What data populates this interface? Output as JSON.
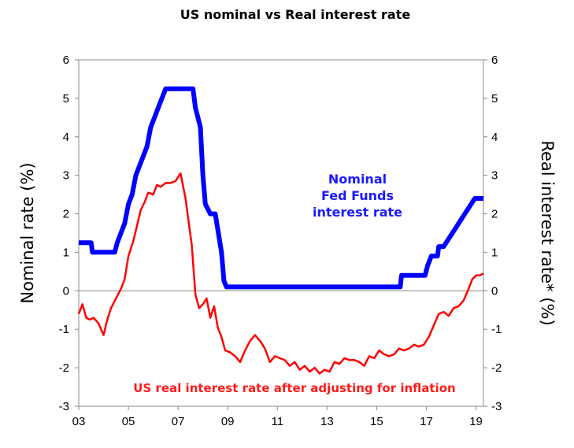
{
  "chart_data": {
    "type": "line",
    "title": "US nominal vs Real interest rate",
    "ylabel_left": "Nominal rate (%)",
    "ylabel_right": "Real interest rate* (%)",
    "xlabel": "",
    "xlim": [
      2003,
      2019.3
    ],
    "ylim": [
      -3,
      6
    ],
    "x_ticks": [
      2003,
      2005,
      2007,
      2009,
      2011,
      2013,
      2015,
      2017,
      2019
    ],
    "x_tick_labels": [
      "03",
      "05",
      "07",
      "09",
      "11",
      "13",
      "15",
      "17",
      "19"
    ],
    "y_ticks": [
      6,
      5,
      4,
      3,
      2,
      1,
      0,
      -1,
      -2,
      -3
    ],
    "y_tick_labels": [
      "6",
      "5",
      "4",
      "3",
      "2",
      "1",
      "0",
      "-1",
      "-2",
      "-3"
    ],
    "grid": false,
    "annotations": [
      {
        "text_lines": [
          "Nominal",
          "Fed Funds",
          "interest rate"
        ],
        "series": "Nominal Fed Funds interest rate"
      },
      {
        "text": "US real interest rate after adjusting for inflation",
        "series": "US real interest rate"
      }
    ],
    "series": [
      {
        "name": "Nominal Fed Funds interest rate",
        "color": "#0000ff",
        "x": [
          2003.0,
          2003.5,
          2003.55,
          2004.45,
          2004.55,
          2004.7,
          2004.85,
          2005.0,
          2005.15,
          2005.3,
          2005.45,
          2005.6,
          2005.75,
          2005.9,
          2006.05,
          2006.2,
          2006.35,
          2006.5,
          2007.6,
          2007.7,
          2007.8,
          2007.9,
          2008.0,
          2008.1,
          2008.3,
          2008.5,
          2008.75,
          2008.85,
          2008.95,
          2015.95,
          2016.0,
          2016.95,
          2017.05,
          2017.2,
          2017.45,
          2017.5,
          2017.7,
          2017.95,
          2018.2,
          2018.45,
          2018.7,
          2018.95,
          2019.3
        ],
        "y": [
          1.25,
          1.25,
          1.0,
          1.0,
          1.25,
          1.5,
          1.75,
          2.25,
          2.5,
          3.0,
          3.25,
          3.5,
          3.75,
          4.25,
          4.5,
          4.75,
          5.0,
          5.25,
          5.25,
          4.75,
          4.5,
          4.25,
          3.0,
          2.25,
          2.0,
          2.0,
          1.0,
          0.25,
          0.1,
          0.1,
          0.4,
          0.4,
          0.65,
          0.9,
          0.9,
          1.15,
          1.15,
          1.4,
          1.65,
          1.9,
          2.15,
          2.4,
          2.4
        ]
      },
      {
        "name": "US real interest rate",
        "color": "#ff0000",
        "x": [
          2003.0,
          2003.15,
          2003.3,
          2003.45,
          2003.6,
          2003.8,
          2004.0,
          2004.15,
          2004.3,
          2004.5,
          2004.7,
          2004.85,
          2005.0,
          2005.2,
          2005.35,
          2005.5,
          2005.65,
          2005.8,
          2006.0,
          2006.15,
          2006.3,
          2006.5,
          2006.7,
          2006.9,
          2007.1,
          2007.3,
          2007.55,
          2007.7,
          2007.85,
          2008.0,
          2008.15,
          2008.3,
          2008.45,
          2008.6,
          2008.75,
          2008.9,
          2009.1,
          2009.3,
          2009.5,
          2009.7,
          2009.9,
          2010.1,
          2010.3,
          2010.5,
          2010.7,
          2010.9,
          2011.1,
          2011.3,
          2011.5,
          2011.7,
          2011.9,
          2012.1,
          2012.3,
          2012.5,
          2012.7,
          2012.9,
          2013.1,
          2013.3,
          2013.5,
          2013.7,
          2013.9,
          2014.1,
          2014.3,
          2014.5,
          2014.7,
          2014.9,
          2015.1,
          2015.3,
          2015.5,
          2015.7,
          2015.9,
          2016.1,
          2016.3,
          2016.5,
          2016.7,
          2016.9,
          2017.1,
          2017.3,
          2017.5,
          2017.7,
          2017.9,
          2018.1,
          2018.3,
          2018.5,
          2018.7,
          2018.85,
          2019.0,
          2019.15,
          2019.3
        ],
        "y": [
          -0.6,
          -0.35,
          -0.7,
          -0.75,
          -0.7,
          -0.85,
          -1.15,
          -0.75,
          -0.45,
          -0.2,
          0.05,
          0.3,
          0.9,
          1.3,
          1.7,
          2.1,
          2.3,
          2.55,
          2.5,
          2.75,
          2.7,
          2.8,
          2.8,
          2.85,
          3.05,
          2.4,
          1.2,
          -0.1,
          -0.45,
          -0.35,
          -0.2,
          -0.7,
          -0.4,
          -0.95,
          -1.2,
          -1.55,
          -1.6,
          -1.7,
          -1.85,
          -1.55,
          -1.3,
          -1.15,
          -1.3,
          -1.5,
          -1.85,
          -1.7,
          -1.75,
          -1.8,
          -1.95,
          -1.85,
          -2.05,
          -1.95,
          -2.1,
          -2.0,
          -2.15,
          -2.05,
          -2.1,
          -1.85,
          -1.9,
          -1.75,
          -1.8,
          -1.8,
          -1.85,
          -1.95,
          -1.7,
          -1.75,
          -1.55,
          -1.65,
          -1.7,
          -1.65,
          -1.5,
          -1.55,
          -1.5,
          -1.4,
          -1.45,
          -1.4,
          -1.2,
          -0.9,
          -0.6,
          -0.55,
          -0.65,
          -0.45,
          -0.4,
          -0.25,
          0.05,
          0.3,
          0.4,
          0.4,
          0.45
        ]
      }
    ]
  }
}
